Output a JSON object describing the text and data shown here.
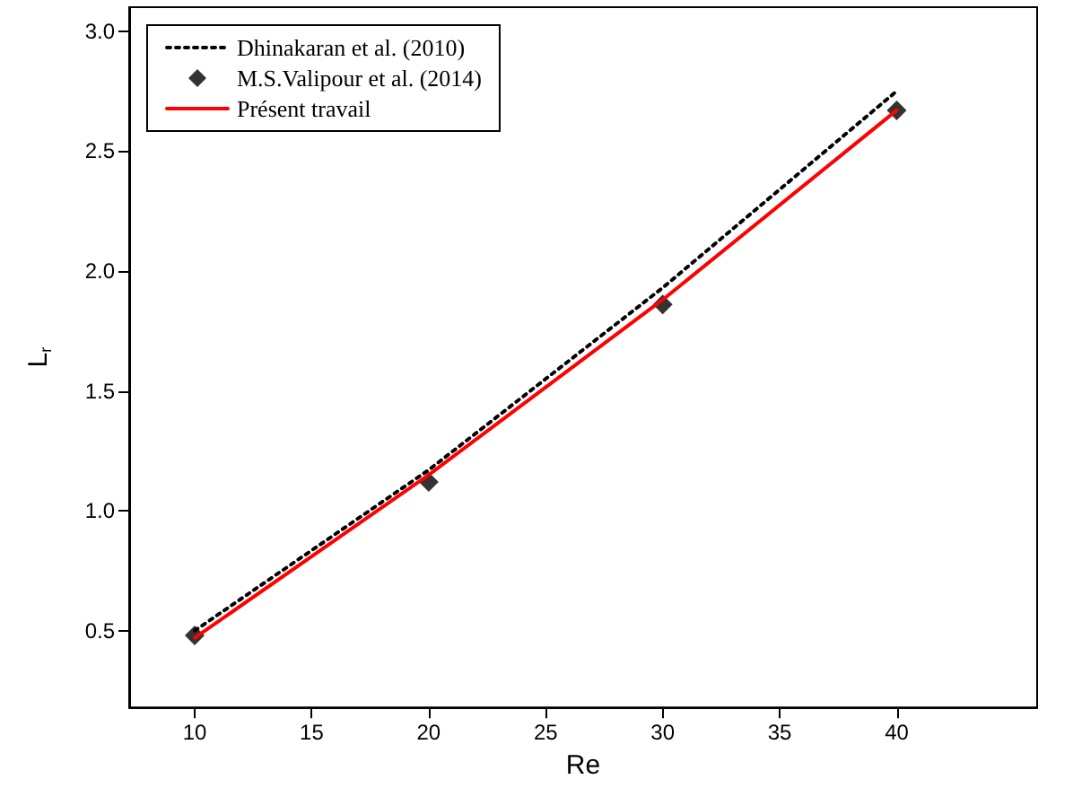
{
  "chart_data": {
    "type": "line",
    "xlabel": "Re",
    "ylabel": "L$_{r}$",
    "xlim": [
      7.2,
      46
    ],
    "xticks": [
      10,
      15,
      20,
      25,
      30,
      35,
      40
    ],
    "ylim": [
      0.18,
      3.1
    ],
    "yticks": [
      0.5,
      {
        "value": 1,
        "label": "1.0"
      },
      1.5,
      {
        "value": 2,
        "label": "2.0"
      },
      2.5,
      {
        "value": 3,
        "label": "3.0"
      }
    ],
    "grid": false,
    "legend": "top left",
    "series": [
      {
        "name": "Dhinakaran et al. (2010)",
        "color": "#000000",
        "line_style": "dotted",
        "marker": "none",
        "x": [
          10,
          20,
          30,
          40
        ],
        "values": [
          0.5,
          1.17,
          1.93,
          2.75
        ]
      },
      {
        "name": "M.S.Valipour et al. (2014)",
        "type": "scatter",
        "color": "#000000",
        "marker": "diamond",
        "x": [
          10,
          20,
          30,
          40
        ],
        "values": [
          0.48,
          1.12,
          1.86,
          2.67
        ]
      },
      {
        "name": "Présent travail",
        "color": "#ff0000",
        "line_style": "solid",
        "marker": "none",
        "x": [
          10,
          20,
          30,
          40
        ],
        "values": [
          0.47,
          1.15,
          1.88,
          2.67
        ]
      }
    ]
  }
}
